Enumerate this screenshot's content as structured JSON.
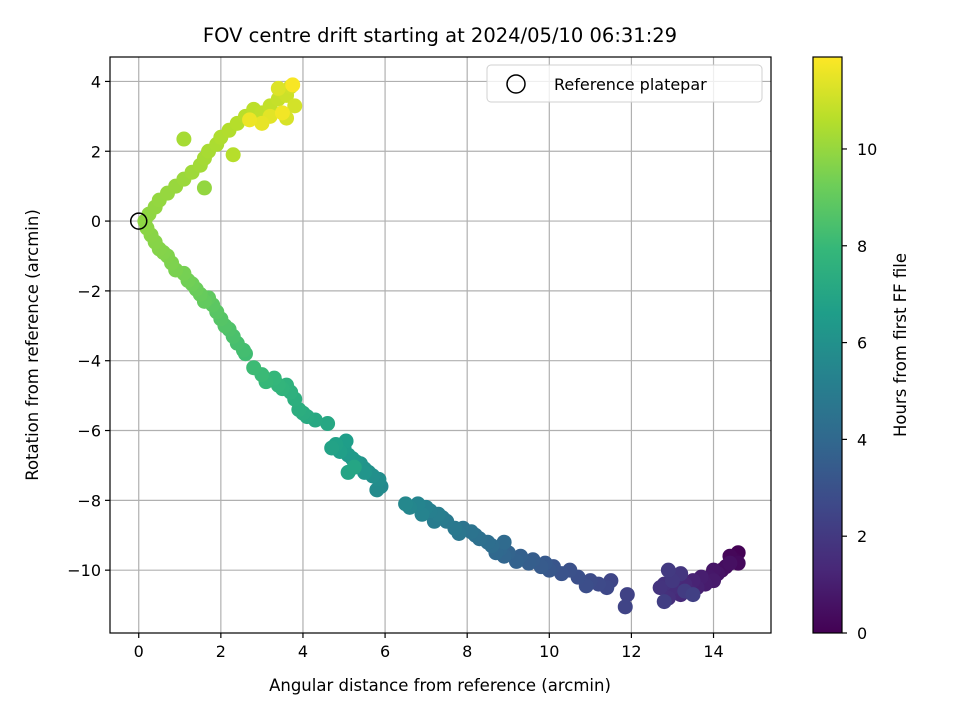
{
  "chart_data": {
    "type": "scatter",
    "title": "FOV centre drift starting at 2024/05/10 06:31:29",
    "xlabel": "Angular distance from reference (arcmin)",
    "ylabel": "Rotation from reference (arcmin)",
    "xlim": [
      -0.7,
      15.4
    ],
    "ylim": [
      -11.8,
      4.7
    ],
    "xticks": [
      0,
      2,
      4,
      6,
      8,
      10,
      12,
      14
    ],
    "yticks": [
      -10,
      -8,
      -6,
      -4,
      -2,
      0,
      2,
      4
    ],
    "grid": true,
    "colorbar": {
      "label": "Hours from first FF file",
      "range": [
        0,
        11.9
      ],
      "ticks": [
        0,
        2,
        4,
        6,
        8,
        10
      ],
      "colormap": "viridis",
      "stops": [
        "#440154",
        "#482878",
        "#3e4989",
        "#31688e",
        "#26828e",
        "#1f9e89",
        "#35b779",
        "#6ece58",
        "#b5de2b",
        "#fde725"
      ]
    },
    "legend": {
      "position": "top-right",
      "entries": [
        {
          "label": "Reference platepar",
          "marker": "open-circle"
        }
      ]
    },
    "reference_point": {
      "x": 0,
      "y": 0
    },
    "series": [
      {
        "points": [
          [
            14.6,
            -9.5,
            0.05
          ],
          [
            14.5,
            -9.7,
            0.12
          ],
          [
            14.4,
            -9.6,
            0.2
          ],
          [
            14.6,
            -9.8,
            0.28
          ],
          [
            14.3,
            -9.9,
            0.36
          ],
          [
            14.2,
            -10.0,
            0.44
          ],
          [
            14.4,
            -9.8,
            0.52
          ],
          [
            14.1,
            -10.1,
            0.6
          ],
          [
            14.0,
            -10.0,
            0.68
          ],
          [
            13.9,
            -10.2,
            0.76
          ],
          [
            14.0,
            -10.3,
            0.84
          ],
          [
            13.8,
            -10.4,
            0.92
          ],
          [
            13.7,
            -10.2,
            1.0
          ],
          [
            13.6,
            -10.5,
            1.08
          ],
          [
            13.5,
            -10.3,
            1.16
          ],
          [
            13.4,
            -10.6,
            1.24
          ],
          [
            13.3,
            -10.4,
            1.32
          ],
          [
            13.2,
            -10.7,
            1.4
          ],
          [
            13.1,
            -10.2,
            1.48
          ],
          [
            13.0,
            -10.5,
            1.56
          ],
          [
            12.9,
            -10.8,
            1.64
          ],
          [
            12.8,
            -10.4,
            1.72
          ],
          [
            12.7,
            -10.5,
            1.8
          ],
          [
            13.2,
            -10.1,
            1.88
          ],
          [
            13.0,
            -10.3,
            1.96
          ],
          [
            12.9,
            -10.0,
            2.04
          ],
          [
            13.3,
            -10.6,
            2.12
          ],
          [
            12.8,
            -10.9,
            2.2
          ],
          [
            13.5,
            -10.7,
            2.28
          ],
          [
            11.9,
            -10.7,
            2.36
          ],
          [
            11.85,
            -11.05,
            2.44
          ],
          [
            11.5,
            -10.3,
            2.52
          ],
          [
            11.4,
            -10.5,
            2.6
          ],
          [
            11.2,
            -10.4,
            2.68
          ],
          [
            11.0,
            -10.3,
            2.76
          ],
          [
            10.9,
            -10.45,
            2.84
          ],
          [
            10.7,
            -10.2,
            2.92
          ],
          [
            10.5,
            -10.0,
            3.0
          ],
          [
            10.3,
            -10.1,
            3.08
          ],
          [
            10.1,
            -9.9,
            3.16
          ],
          [
            10.0,
            -10.0,
            3.24
          ],
          [
            9.9,
            -9.8,
            3.32
          ],
          [
            9.8,
            -9.9,
            3.4
          ],
          [
            9.6,
            -9.7,
            3.48
          ],
          [
            9.5,
            -9.8,
            3.56
          ],
          [
            9.3,
            -9.6,
            3.64
          ],
          [
            9.2,
            -9.75,
            3.72
          ],
          [
            9.0,
            -9.5,
            3.8
          ],
          [
            8.9,
            -9.6,
            3.88
          ],
          [
            8.8,
            -9.4,
            3.96
          ],
          [
            8.7,
            -9.5,
            4.04
          ],
          [
            8.9,
            -9.2,
            4.12
          ],
          [
            8.6,
            -9.3,
            4.2
          ],
          [
            8.5,
            -9.2,
            4.28
          ],
          [
            8.3,
            -9.1,
            4.36
          ],
          [
            8.2,
            -9.0,
            4.44
          ],
          [
            8.1,
            -8.9,
            4.52
          ],
          [
            7.9,
            -8.8,
            4.6
          ],
          [
            7.8,
            -8.95,
            4.68
          ],
          [
            7.7,
            -8.8,
            4.76
          ],
          [
            7.5,
            -8.6,
            4.84
          ],
          [
            7.4,
            -8.5,
            4.92
          ],
          [
            7.2,
            -8.6,
            5.0
          ],
          [
            7.3,
            -8.4,
            5.08
          ],
          [
            7.1,
            -8.3,
            5.16
          ],
          [
            7.0,
            -8.2,
            5.24
          ],
          [
            6.9,
            -8.4,
            5.32
          ],
          [
            6.8,
            -8.1,
            5.4
          ],
          [
            6.6,
            -8.2,
            5.48
          ],
          [
            6.5,
            -8.1,
            5.56
          ],
          [
            5.9,
            -7.6,
            5.64
          ],
          [
            5.8,
            -7.7,
            5.72
          ],
          [
            5.85,
            -7.4,
            5.8
          ],
          [
            5.7,
            -7.3,
            5.88
          ],
          [
            5.6,
            -7.2,
            5.96
          ],
          [
            5.5,
            -7.1,
            6.04
          ],
          [
            5.4,
            -6.95,
            6.12
          ],
          [
            5.5,
            -7.2,
            6.2
          ],
          [
            5.3,
            -6.9,
            6.28
          ],
          [
            5.2,
            -6.8,
            6.36
          ],
          [
            5.1,
            -6.7,
            6.44
          ],
          [
            5.0,
            -6.5,
            6.52
          ],
          [
            5.05,
            -6.3,
            6.6
          ],
          [
            4.9,
            -6.6,
            6.68
          ],
          [
            4.8,
            -6.4,
            6.76
          ],
          [
            4.7,
            -6.5,
            6.84
          ],
          [
            5.1,
            -7.2,
            6.92
          ],
          [
            5.25,
            -7.05,
            7.0
          ],
          [
            4.6,
            -5.8,
            7.08
          ],
          [
            4.3,
            -5.7,
            7.16
          ],
          [
            4.1,
            -5.6,
            7.24
          ],
          [
            4.0,
            -5.5,
            7.32
          ],
          [
            3.9,
            -5.4,
            7.4
          ],
          [
            3.8,
            -5.1,
            7.48
          ],
          [
            3.7,
            -4.9,
            7.56
          ],
          [
            3.6,
            -4.7,
            7.64
          ],
          [
            3.5,
            -4.8,
            7.72
          ],
          [
            3.4,
            -4.7,
            7.8
          ],
          [
            3.3,
            -4.5,
            7.88
          ],
          [
            3.1,
            -4.6,
            7.96
          ],
          [
            3.0,
            -4.4,
            8.04
          ],
          [
            2.8,
            -4.2,
            8.12
          ],
          [
            2.6,
            -3.8,
            8.2
          ],
          [
            2.55,
            -3.7,
            8.28
          ],
          [
            2.4,
            -3.5,
            8.36
          ],
          [
            2.3,
            -3.3,
            8.44
          ],
          [
            2.2,
            -3.1,
            8.52
          ],
          [
            2.1,
            -3.0,
            8.6
          ],
          [
            2.0,
            -2.8,
            8.68
          ],
          [
            1.9,
            -2.6,
            8.76
          ],
          [
            1.8,
            -2.4,
            8.84
          ],
          [
            1.7,
            -2.2,
            8.92
          ],
          [
            1.6,
            -2.3,
            9.0
          ],
          [
            1.5,
            -2.1,
            9.08
          ],
          [
            1.4,
            -1.95,
            9.16
          ],
          [
            1.3,
            -1.8,
            9.24
          ],
          [
            1.2,
            -1.7,
            9.32
          ],
          [
            1.1,
            -1.5,
            9.4
          ],
          [
            0.9,
            -1.4,
            9.48
          ],
          [
            0.8,
            -1.2,
            9.56
          ],
          [
            0.7,
            -1.0,
            9.6
          ],
          [
            0.6,
            -0.9,
            9.64
          ],
          [
            0.5,
            -0.8,
            9.68
          ],
          [
            0.4,
            -0.6,
            9.72
          ],
          [
            0.3,
            -0.4,
            9.76
          ],
          [
            0.2,
            -0.2,
            9.8
          ],
          [
            0.15,
            0.0,
            9.84
          ],
          [
            0.25,
            0.2,
            9.88
          ],
          [
            0.4,
            0.4,
            9.92
          ],
          [
            0.5,
            0.6,
            9.96
          ],
          [
            0.7,
            0.8,
            10.0
          ],
          [
            0.9,
            1.0,
            10.04
          ],
          [
            1.1,
            1.2,
            10.1
          ],
          [
            1.3,
            1.4,
            10.16
          ],
          [
            1.5,
            1.6,
            10.22
          ],
          [
            1.6,
            1.8,
            10.28
          ],
          [
            1.7,
            2.0,
            10.34
          ],
          [
            1.9,
            2.2,
            10.4
          ],
          [
            2.0,
            2.4,
            10.46
          ],
          [
            2.2,
            2.6,
            10.52
          ],
          [
            2.4,
            2.8,
            10.58
          ],
          [
            2.6,
            3.0,
            10.64
          ],
          [
            2.8,
            3.2,
            10.7
          ],
          [
            3.0,
            3.1,
            10.76
          ],
          [
            3.2,
            3.3,
            10.82
          ],
          [
            3.4,
            3.5,
            10.88
          ],
          [
            3.5,
            3.7,
            10.94
          ],
          [
            3.6,
            3.6,
            11.0
          ],
          [
            3.7,
            3.85,
            11.06
          ],
          [
            3.8,
            3.3,
            11.12
          ],
          [
            3.6,
            2.95,
            11.2
          ],
          [
            3.4,
            3.8,
            11.3
          ],
          [
            3.2,
            3.0,
            11.4
          ],
          [
            3.0,
            2.8,
            11.5
          ],
          [
            2.7,
            2.9,
            11.6
          ],
          [
            3.5,
            3.1,
            11.7
          ],
          [
            3.75,
            3.9,
            11.8
          ],
          [
            1.1,
            2.35,
            10.3
          ],
          [
            1.6,
            0.95,
            9.95
          ],
          [
            2.3,
            1.9,
            10.6
          ]
        ]
      }
    ]
  }
}
